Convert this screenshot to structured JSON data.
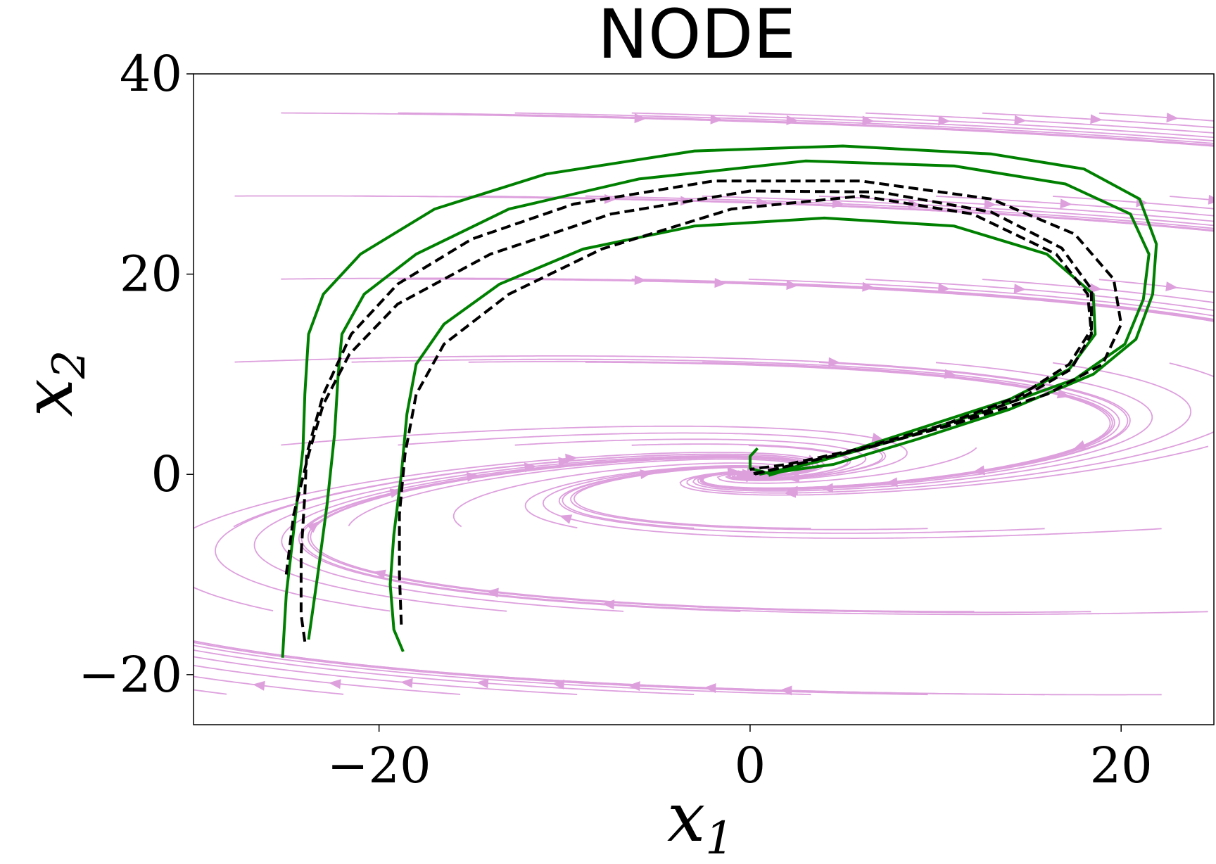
{
  "chart_data": {
    "type": "line",
    "title": "NODE",
    "xlabel": "x",
    "xlabel_sub": "1",
    "ylabel": "x",
    "ylabel_sub": "2",
    "xlim": [
      -30,
      25
    ],
    "ylim": [
      -25,
      40
    ],
    "x_ticks": [
      {
        "value": -20,
        "label": "−20"
      },
      {
        "value": 0,
        "label": "0"
      },
      {
        "value": 20,
        "label": "20"
      }
    ],
    "y_ticks": [
      {
        "value": -20,
        "label": "−20"
      },
      {
        "value": 0,
        "label": "0"
      },
      {
        "value": 20,
        "label": "20"
      },
      {
        "value": 40,
        "label": "40"
      }
    ],
    "grid": false,
    "streamline_color": "#dda0dd",
    "series": [
      {
        "style": "solid",
        "color": "#008000",
        "points": [
          [
            -25.2,
            -18.3
          ],
          [
            -25.0,
            -12
          ],
          [
            -24.5,
            -4
          ],
          [
            -24.1,
            2.5
          ],
          [
            -24.0,
            8
          ],
          [
            -23.8,
            14
          ],
          [
            -23.0,
            18
          ],
          [
            -21.0,
            22
          ],
          [
            -17.0,
            26.5
          ],
          [
            -11.0,
            30
          ],
          [
            -3.0,
            32.3
          ],
          [
            5.0,
            32.8
          ],
          [
            13.0,
            32
          ],
          [
            18.0,
            30.5
          ],
          [
            21.0,
            27.5
          ],
          [
            21.9,
            23
          ],
          [
            21.7,
            18
          ],
          [
            20.8,
            13.5
          ],
          [
            18.5,
            10
          ],
          [
            14.0,
            6.5
          ],
          [
            9.0,
            3.5
          ],
          [
            4.5,
            1.0
          ],
          [
            1.0,
            0.1
          ],
          [
            0.0,
            0.6
          ],
          [
            0.0,
            1.8
          ],
          [
            0.4,
            2.6
          ]
        ]
      },
      {
        "style": "solid",
        "color": "#008000",
        "points": [
          [
            -23.8,
            -16.5
          ],
          [
            -23.3,
            -10
          ],
          [
            -22.8,
            -3
          ],
          [
            -22.4,
            4
          ],
          [
            -22.2,
            10
          ],
          [
            -22.0,
            14
          ],
          [
            -20.8,
            18
          ],
          [
            -18.0,
            22
          ],
          [
            -13.0,
            26.5
          ],
          [
            -6.0,
            29.5
          ],
          [
            3.0,
            31.3
          ],
          [
            11.0,
            30.8
          ],
          [
            17.0,
            29
          ],
          [
            20.5,
            26
          ],
          [
            21.5,
            22
          ],
          [
            21.2,
            17.5
          ],
          [
            20.2,
            13
          ],
          [
            17.5,
            9.5
          ],
          [
            13.0,
            6.5
          ],
          [
            8.0,
            3.5
          ],
          [
            3.5,
            1.2
          ],
          [
            0.5,
            0.0
          ]
        ]
      },
      {
        "style": "solid",
        "color": "#008000",
        "points": [
          [
            -18.7,
            -17.7
          ],
          [
            -19.2,
            -15.5
          ],
          [
            -19.4,
            -11
          ],
          [
            -19.2,
            -6
          ],
          [
            -18.8,
            0
          ],
          [
            -18.5,
            6
          ],
          [
            -18.0,
            11
          ],
          [
            -16.5,
            15
          ],
          [
            -13.5,
            19
          ],
          [
            -9.0,
            22.5
          ],
          [
            -3.0,
            24.8
          ],
          [
            4.0,
            25.6
          ],
          [
            11.0,
            24.8
          ],
          [
            16.0,
            22
          ],
          [
            18.5,
            18
          ],
          [
            18.6,
            14
          ],
          [
            17.2,
            10.5
          ],
          [
            14.0,
            7.5
          ],
          [
            9.0,
            4.5
          ],
          [
            4.5,
            1.8
          ],
          [
            1.0,
            -0.1
          ]
        ]
      },
      {
        "style": "dashed",
        "color": "#000000",
        "points": [
          [
            -24.0,
            -16.7
          ],
          [
            -24.2,
            -14
          ],
          [
            -24.2,
            -8
          ],
          [
            -24.0,
            -2
          ],
          [
            -23.9,
            2
          ],
          [
            -23.0,
            8
          ],
          [
            -21.5,
            14
          ],
          [
            -19.0,
            19
          ],
          [
            -15.0,
            23.5
          ],
          [
            -9.5,
            27
          ],
          [
            -2.0,
            29.3
          ],
          [
            6.0,
            29.3
          ],
          [
            13.0,
            27.5
          ],
          [
            17.5,
            24
          ],
          [
            19.6,
            19.5
          ],
          [
            20.0,
            15
          ],
          [
            19.0,
            11
          ],
          [
            16.0,
            8
          ],
          [
            11.0,
            5
          ],
          [
            6.0,
            2.5
          ],
          [
            2.0,
            0.8
          ],
          [
            0.2,
            0.0
          ]
        ]
      },
      {
        "style": "dashed",
        "color": "#000000",
        "points": [
          [
            -25.0,
            -10
          ],
          [
            -24.6,
            -4
          ],
          [
            -23.8,
            2
          ],
          [
            -23.0,
            7
          ],
          [
            -21.6,
            12
          ],
          [
            -19.0,
            17
          ],
          [
            -14.0,
            22
          ],
          [
            -7.5,
            26
          ],
          [
            0.0,
            28.3
          ],
          [
            7.0,
            28.2
          ],
          [
            13.0,
            26.2
          ],
          [
            16.8,
            22.6
          ],
          [
            18.4,
            18.5
          ],
          [
            18.4,
            14.5
          ],
          [
            17.2,
            11
          ],
          [
            14.5,
            7.8
          ],
          [
            10.5,
            5
          ],
          [
            6.0,
            2.6
          ],
          [
            2.0,
            1.0
          ],
          [
            0.0,
            0.5
          ]
        ]
      },
      {
        "style": "dashed",
        "color": "#000000",
        "points": [
          [
            -18.8,
            -15
          ],
          [
            -18.9,
            -10
          ],
          [
            -18.9,
            -4
          ],
          [
            -18.6,
            2
          ],
          [
            -18.0,
            8
          ],
          [
            -16.5,
            13
          ],
          [
            -13.0,
            18
          ],
          [
            -8.0,
            22.5
          ],
          [
            -1.0,
            26.5
          ],
          [
            6.0,
            27.8
          ],
          [
            12.0,
            26
          ],
          [
            16.5,
            22
          ],
          [
            18.2,
            18
          ],
          [
            18.4,
            14
          ],
          [
            17.3,
            10.5
          ],
          [
            14.5,
            7.5
          ],
          [
            10.5,
            4.8
          ],
          [
            6.0,
            2.5
          ],
          [
            2.0,
            0.8
          ],
          [
            0.0,
            0.0
          ]
        ]
      }
    ]
  }
}
